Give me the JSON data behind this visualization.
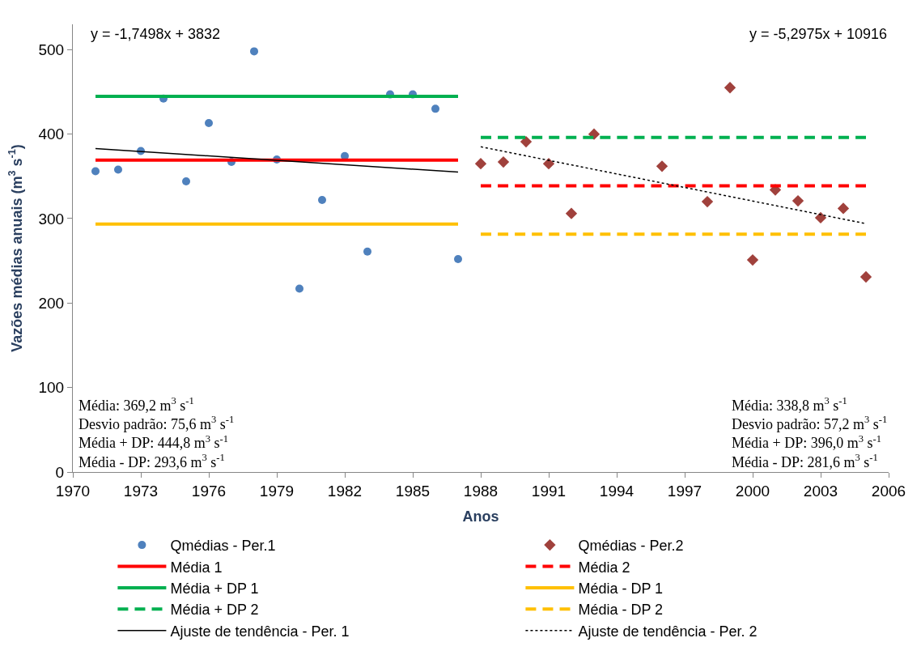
{
  "chart_data": {
    "type": "scatter",
    "xlabel": "Anos",
    "ylabel": "Vazões médias anuais (m$^{3}$ s$^{-1}$)",
    "xlim": [
      1970,
      2006
    ],
    "xticks": [
      1970,
      1973,
      1976,
      1979,
      1982,
      1985,
      1988,
      1991,
      1994,
      1997,
      2000,
      2003,
      2006
    ],
    "ylim": [
      0,
      530
    ],
    "yticks": [
      0,
      100,
      200,
      300,
      400,
      500
    ],
    "legend": "bottom",
    "series": [
      {
        "name": "Qmédias - Per.1",
        "type": "scatter",
        "marker": "circle",
        "color": "#4f81bd",
        "x": [
          1971,
          1972,
          1973,
          1974,
          1975,
          1976,
          1977,
          1978,
          1979,
          1980,
          1981,
          1982,
          1983,
          1984,
          1985,
          1986,
          1987
        ],
        "values": [
          356,
          358,
          380,
          442,
          344,
          413,
          367,
          498,
          370,
          217,
          322,
          374,
          261,
          447,
          447,
          430,
          252
        ]
      },
      {
        "name": "Qmédias - Per.2",
        "type": "scatter",
        "marker": "diamond",
        "color": "#a0413c",
        "x": [
          1988,
          1989,
          1990,
          1991,
          1992,
          1993,
          1996,
          1998,
          1999,
          2000,
          2001,
          2002,
          2003,
          2004,
          2005
        ],
        "values": [
          365,
          367,
          391,
          365,
          306,
          400,
          362,
          320,
          455,
          251,
          334,
          321,
          301,
          312,
          231
        ]
      },
      {
        "name": "Média 1",
        "type": "line",
        "line_style": "solid",
        "color": "#ff0000",
        "x": [
          1971,
          1987
        ],
        "values": [
          369.2,
          369.2
        ]
      },
      {
        "name": "Média 2",
        "type": "line",
        "line_style": "dashed",
        "color": "#ff0000",
        "x": [
          1988,
          2005
        ],
        "values": [
          338.8,
          338.8
        ]
      },
      {
        "name": "Média + DP 1",
        "type": "line",
        "line_style": "solid",
        "color": "#00b050",
        "x": [
          1971,
          1987
        ],
        "values": [
          444.8,
          444.8
        ]
      },
      {
        "name": "Média - DP 1",
        "type": "line",
        "line_style": "solid",
        "color": "#ffc000",
        "x": [
          1971,
          1987
        ],
        "values": [
          293.6,
          293.6
        ]
      },
      {
        "name": "Média + DP 2",
        "type": "line",
        "line_style": "dashed",
        "color": "#00b050",
        "x": [
          1988,
          2005
        ],
        "values": [
          396.0,
          396.0
        ]
      },
      {
        "name": "Média - DP 2",
        "type": "line",
        "line_style": "dashed",
        "color": "#ffc000",
        "x": [
          1988,
          2005
        ],
        "values": [
          281.6,
          281.6
        ]
      },
      {
        "name": "Ajuste de tendência - Per. 1",
        "type": "line",
        "line_style": "solid",
        "color": "#000000",
        "x": [
          1971,
          1987
        ],
        "values": [
          383,
          355
        ]
      },
      {
        "name": "Ajuste de tendência - Per. 2",
        "type": "line",
        "line_style": "dotted",
        "color": "#000000",
        "x": [
          1988,
          2005
        ],
        "values": [
          385,
          294
        ]
      }
    ],
    "annotations": [
      "y = -1,7498x + 3832",
      "y = -5,2975x + 10916",
      "Média: 369,2 m$^{3}$ s$^{-1}$\nDesvio padrão: 75,6 m$^{3}$ s$^{-1}$\nMédia + DP: 444,8 m$^{3}$ s$^{-1}$\nMédia - DP: 293,6 m$^{3}$ s$^{-1}$",
      "Média: 338,8 m$^{3}$ s$^{-1}$\nDesvio padrão: 57,2 m$^{3}$ s$^{-1}$\nMédia + DP: 396,0 m$^{3}$ s$^{-1}$\nMédia - DP: 281,6 m$^{3}$ s$^{-1}$"
    ]
  }
}
